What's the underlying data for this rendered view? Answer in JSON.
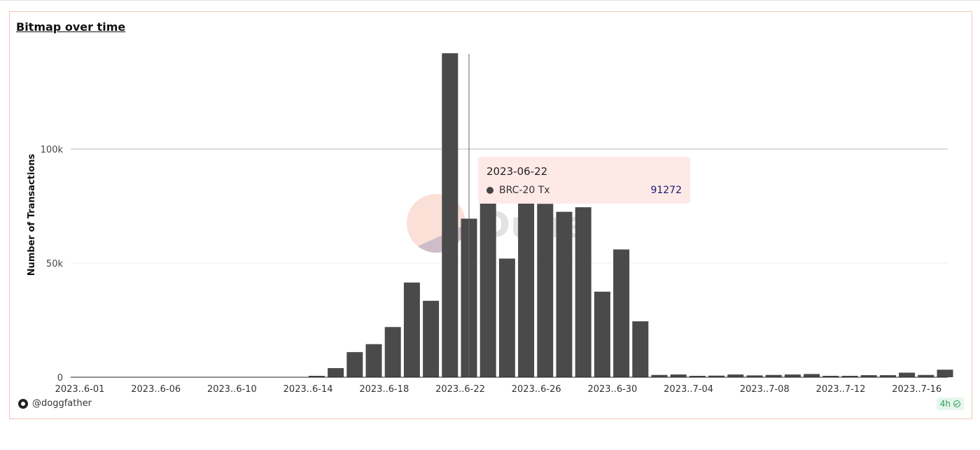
{
  "title": "Bitmap over time",
  "author": "@doggfather",
  "freshness": "4h",
  "watermark": "Dune",
  "tooltip": {
    "date": "2023-06-22",
    "series": "BRC-20 Tx",
    "value": "91272"
  },
  "colors": {
    "bar": "#4a4a4a",
    "border": "#f2c4b8",
    "badge": "#2a9d57",
    "tooltip_bg": "#fde9e6"
  },
  "chart_data": {
    "type": "bar",
    "ylabel": "Number of Transactions",
    "ylim": [
      0,
      142000
    ],
    "yticks": [
      0,
      50000,
      100000
    ],
    "ytick_labels": [
      "0",
      "50k",
      "100k"
    ],
    "xtick_labels": [
      "2023..6-01",
      "2023..6-06",
      "2023..6-10",
      "2023..6-14",
      "2023..6-18",
      "2023..6-22",
      "2023..6-26",
      "2023..6-30",
      "2023..7-04",
      "2023..7-08",
      "2023..7-12",
      "2023..7-16"
    ],
    "grid": true,
    "series": [
      {
        "name": "BRC-20 Tx",
        "dates": [
          "2023-06-13",
          "2023-06-14",
          "2023-06-15",
          "2023-06-16",
          "2023-06-17",
          "2023-06-18",
          "2023-06-19",
          "2023-06-20",
          "2023-06-21",
          "2023-06-22",
          "2023-06-23",
          "2023-06-24",
          "2023-06-25",
          "2023-06-26",
          "2023-06-27",
          "2023-06-28",
          "2023-06-29",
          "2023-06-30",
          "2023-07-01",
          "2023-07-02",
          "2023-07-03",
          "2023-07-04",
          "2023-07-05",
          "2023-07-06",
          "2023-07-07",
          "2023-07-08",
          "2023-07-09",
          "2023-07-10",
          "2023-07-11",
          "2023-07-12",
          "2023-07-13",
          "2023-07-14",
          "2023-07-15",
          "2023-07-16"
        ],
        "values": [
          500,
          4000,
          11000,
          14500,
          22000,
          41500,
          33500,
          142000,
          69500,
          91272,
          52000,
          78000,
          76000,
          72500,
          74500,
          37500,
          56000,
          24500,
          1000,
          1200,
          600,
          700,
          1200,
          800,
          1000,
          1200,
          1400,
          400,
          600,
          900,
          900,
          2000,
          1000,
          3300
        ]
      }
    ]
  }
}
